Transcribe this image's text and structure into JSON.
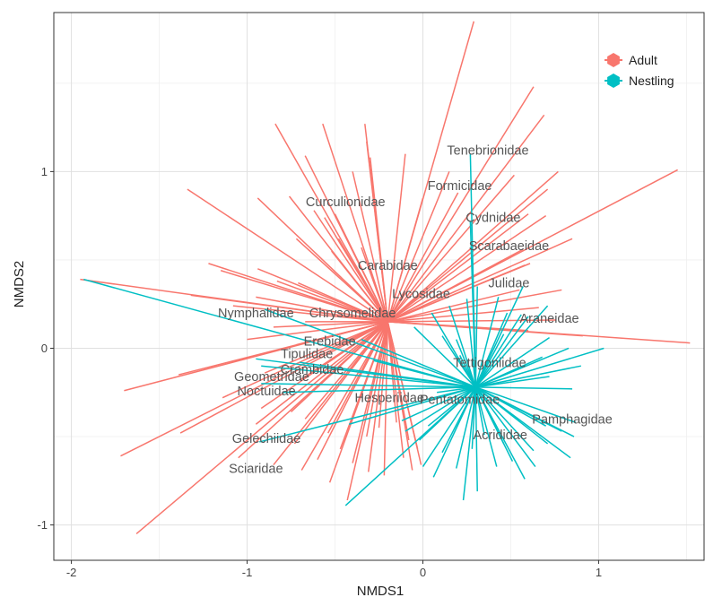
{
  "chart_data": {
    "type": "spider",
    "xlabel": "NMDS1",
    "ylabel": "NMDS2",
    "xlim": [
      -2.1,
      1.6
    ],
    "ylim": [
      -1.2,
      1.9
    ],
    "x_ticks": [
      -2,
      -1,
      0,
      1
    ],
    "y_ticks": [
      -1,
      0,
      1
    ],
    "x_tick_labels": [
      "-2",
      "-1",
      "0",
      "1"
    ],
    "y_tick_labels": [
      "-1",
      "0",
      "1"
    ],
    "grid": true,
    "legend": {
      "position": "top-right"
    },
    "series": [
      {
        "name": "Adult",
        "color": "#F8766D",
        "centroid": [
          -0.2,
          0.15
        ],
        "points": [
          [
            0.29,
            1.85
          ],
          [
            0.63,
            1.48
          ],
          [
            0.69,
            1.32
          ],
          [
            1.45,
            1.01
          ],
          [
            0.77,
            1.0
          ],
          [
            0.52,
            0.98
          ],
          [
            0.71,
            0.9
          ],
          [
            0.6,
            0.76
          ],
          [
            0.7,
            0.75
          ],
          [
            0.85,
            0.62
          ],
          [
            0.57,
            0.56
          ],
          [
            0.61,
            0.48
          ],
          [
            0.58,
            0.47
          ],
          [
            0.55,
            0.33
          ],
          [
            0.79,
            0.33
          ],
          [
            0.66,
            0.23
          ],
          [
            0.76,
            0.16
          ],
          [
            0.6,
            0.1
          ],
          [
            0.91,
            0.07
          ],
          [
            1.52,
            0.03
          ],
          [
            -0.84,
            1.27
          ],
          [
            -0.57,
            1.27
          ],
          [
            -0.33,
            1.27
          ],
          [
            -0.32,
            1.17
          ],
          [
            -0.67,
            1.09
          ],
          [
            -0.3,
            1.08
          ],
          [
            -0.4,
            1.0
          ],
          [
            -0.1,
            1.1
          ],
          [
            0.15,
            1.0
          ],
          [
            0.0,
            0.85
          ],
          [
            0.2,
            0.88
          ],
          [
            -1.34,
            0.9
          ],
          [
            -0.94,
            0.85
          ],
          [
            -0.76,
            0.86
          ],
          [
            -0.62,
            0.78
          ],
          [
            -0.56,
            0.74
          ],
          [
            -0.5,
            0.76
          ],
          [
            -0.72,
            0.62
          ],
          [
            -0.48,
            0.62
          ],
          [
            -0.35,
            0.57
          ],
          [
            -0.52,
            0.55
          ],
          [
            -1.22,
            0.48
          ],
          [
            -1.15,
            0.44
          ],
          [
            -0.94,
            0.45
          ],
          [
            -0.83,
            0.38
          ],
          [
            -0.71,
            0.37
          ],
          [
            -1.32,
            0.3
          ],
          [
            -0.95,
            0.29
          ],
          [
            -1.08,
            0.24
          ],
          [
            -0.67,
            0.15
          ],
          [
            -0.85,
            0.12
          ],
          [
            -1.0,
            0.05
          ],
          [
            -0.72,
            0.02
          ],
          [
            -1.95,
            0.39
          ],
          [
            -1.02,
            -0.06
          ],
          [
            -0.9,
            -0.14
          ],
          [
            -0.7,
            -0.18
          ],
          [
            -0.6,
            -0.22
          ],
          [
            -1.39,
            -0.15
          ],
          [
            -1.7,
            -0.24
          ],
          [
            -1.14,
            -0.28
          ],
          [
            -0.92,
            -0.34
          ],
          [
            -0.95,
            -0.43
          ],
          [
            -0.75,
            -0.36
          ],
          [
            -0.67,
            -0.4
          ],
          [
            -1.38,
            -0.48
          ],
          [
            -0.73,
            -0.54
          ],
          [
            -1.72,
            -0.61
          ],
          [
            -1.05,
            -0.62
          ],
          [
            -0.85,
            -0.66
          ],
          [
            -0.6,
            -0.63
          ],
          [
            -0.53,
            -0.76
          ],
          [
            -0.69,
            -0.69
          ],
          [
            -0.4,
            -0.65
          ],
          [
            -0.31,
            -0.7
          ],
          [
            -0.22,
            -0.72
          ],
          [
            -0.43,
            -0.86
          ],
          [
            -1.63,
            -1.05
          ],
          [
            -0.11,
            -0.62
          ],
          [
            -0.08,
            -0.52
          ],
          [
            -0.06,
            -0.69
          ],
          [
            -0.01,
            -0.66
          ],
          [
            -0.03,
            -0.57
          ],
          [
            -0.54,
            -0.48
          ],
          [
            -0.47,
            -0.57
          ],
          [
            -0.25,
            -0.45
          ],
          [
            -0.32,
            -0.5
          ],
          [
            -0.15,
            -0.42
          ]
        ]
      },
      {
        "name": "Nestling",
        "color": "#00BFC4",
        "centroid": [
          0.3,
          -0.22
        ],
        "points": [
          [
            0.27,
            1.1
          ],
          [
            0.27,
            0.72
          ],
          [
            -1.93,
            0.39
          ],
          [
            -0.9,
            0.22
          ],
          [
            -0.95,
            -0.06
          ],
          [
            -0.92,
            -0.1
          ],
          [
            -0.92,
            -0.2
          ],
          [
            -0.7,
            -0.08
          ],
          [
            -0.8,
            -0.25
          ],
          [
            -0.35,
            0.05
          ],
          [
            -0.28,
            -0.07
          ],
          [
            -0.93,
            -0.53
          ],
          [
            -0.42,
            -0.43
          ],
          [
            -0.44,
            -0.89
          ],
          [
            -0.12,
            -0.41
          ],
          [
            0.08,
            -0.25
          ],
          [
            0.03,
            -0.44
          ],
          [
            -0.02,
            -0.52
          ],
          [
            -0.1,
            -0.47
          ],
          [
            0.0,
            -0.67
          ],
          [
            0.06,
            -0.73
          ],
          [
            0.19,
            -0.68
          ],
          [
            0.11,
            -0.59
          ],
          [
            0.23,
            -0.86
          ],
          [
            0.28,
            -0.57
          ],
          [
            0.31,
            -0.81
          ],
          [
            0.35,
            -0.49
          ],
          [
            0.42,
            -0.67
          ],
          [
            0.51,
            -0.64
          ],
          [
            0.46,
            -0.54
          ],
          [
            0.58,
            -0.74
          ],
          [
            0.63,
            -0.58
          ],
          [
            0.64,
            -0.67
          ],
          [
            0.71,
            -0.54
          ],
          [
            0.7,
            -0.44
          ],
          [
            0.79,
            -0.47
          ],
          [
            0.86,
            -0.5
          ],
          [
            0.87,
            -0.42
          ],
          [
            0.84,
            -0.62
          ],
          [
            0.85,
            -0.23
          ],
          [
            0.72,
            -0.16
          ],
          [
            0.83,
            0.0
          ],
          [
            1.03,
            0.0
          ],
          [
            0.9,
            -0.1
          ],
          [
            0.68,
            -0.05
          ],
          [
            0.72,
            0.06
          ],
          [
            0.6,
            0.18
          ],
          [
            0.71,
            0.24
          ],
          [
            0.57,
            0.35
          ],
          [
            0.56,
            0.19
          ],
          [
            0.48,
            0.2
          ],
          [
            0.43,
            0.29
          ],
          [
            0.31,
            0.35
          ],
          [
            0.25,
            0.28
          ],
          [
            0.15,
            0.24
          ],
          [
            0.05,
            0.2
          ],
          [
            -0.05,
            0.12
          ],
          [
            0.19,
            0.05
          ],
          [
            0.11,
            0.07
          ],
          [
            0.46,
            0.08
          ],
          [
            0.21,
            -0.04
          ]
        ]
      }
    ],
    "labels": [
      {
        "text": "Tenebrionidae",
        "x": 0.37,
        "y": 1.12
      },
      {
        "text": "Formicidae",
        "x": 0.21,
        "y": 0.92
      },
      {
        "text": "Curculionidae",
        "x": -0.44,
        "y": 0.83
      },
      {
        "text": "Cydnidae",
        "x": 0.4,
        "y": 0.74
      },
      {
        "text": "Scarabaeidae",
        "x": 0.49,
        "y": 0.58
      },
      {
        "text": "Carabidae",
        "x": -0.2,
        "y": 0.47
      },
      {
        "text": "Julidae",
        "x": 0.49,
        "y": 0.37
      },
      {
        "text": "Lycosidae",
        "x": -0.01,
        "y": 0.31
      },
      {
        "text": "Nymphalidae",
        "x": -0.95,
        "y": 0.2
      },
      {
        "text": "Chrysomelidae",
        "x": -0.4,
        "y": 0.2
      },
      {
        "text": "Araneidae",
        "x": 0.72,
        "y": 0.17
      },
      {
        "text": "Erebidae",
        "x": -0.53,
        "y": 0.04
      },
      {
        "text": "Tipulidae",
        "x": -0.66,
        "y": -0.03
      },
      {
        "text": "Tettigoniidae",
        "x": 0.38,
        "y": -0.08
      },
      {
        "text": "Crambidae",
        "x": -0.63,
        "y": -0.12
      },
      {
        "text": "Geometridae",
        "x": -0.86,
        "y": -0.16
      },
      {
        "text": "Noctuidae",
        "x": -0.89,
        "y": -0.24
      },
      {
        "text": "Hesperiidae",
        "x": -0.19,
        "y": -0.28
      },
      {
        "text": "Pentatomidae",
        "x": 0.21,
        "y": -0.29
      },
      {
        "text": "Pamphagidae",
        "x": 0.85,
        "y": -0.4
      },
      {
        "text": "Acrididae",
        "x": 0.44,
        "y": -0.49
      },
      {
        "text": "Gelechiidae",
        "x": -0.89,
        "y": -0.51
      },
      {
        "text": "Sciaridae",
        "x": -0.95,
        "y": -0.68
      }
    ]
  }
}
